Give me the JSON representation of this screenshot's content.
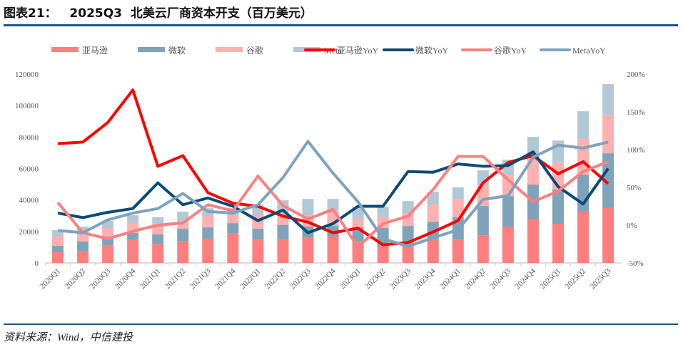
{
  "header": {
    "title": "图表21：   2025Q3  北美云厂商资本开支（百万美元）"
  },
  "footer": {
    "source": "资料来源：Wind，中信建投"
  },
  "chart_data": {
    "type": "bar+line",
    "title": "2025Q3 北美云厂商资本开支（百万美元）",
    "categories": [
      "2020Q1",
      "2020Q2",
      "2020Q3",
      "2020Q4",
      "2021Q1",
      "2021Q2",
      "2021Q3",
      "2021Q4",
      "2022Q1",
      "2022Q2",
      "2022Q3",
      "2022Q4",
      "2023Q1",
      "2023Q2",
      "2023Q3",
      "2023Q4",
      "2024Q1",
      "2024Q2",
      "2024Q3",
      "2024Q4",
      "2025Q1",
      "2025Q2",
      "2025Q3"
    ],
    "left_axis": {
      "ylim": [
        0,
        120000
      ],
      "ticks": [
        "0",
        "20000",
        "40000",
        "60000",
        "80000",
        "100000",
        "120000"
      ]
    },
    "right_axis": {
      "ylim": [
        -50,
        200
      ],
      "ticks": [
        "-50%",
        "0%",
        "50%",
        "100%",
        "150%",
        "200%"
      ]
    },
    "legend_position": "top",
    "bar_series": [
      {
        "name": "亚马逊",
        "color": "#ff7f7f",
        "values": [
          6800,
          7200,
          11300,
          14900,
          12200,
          14000,
          15400,
          19000,
          15000,
          15400,
          16300,
          17200,
          14000,
          10900,
          11000,
          14600,
          14900,
          17600,
          23100,
          27600,
          24900,
          32600,
          35100
        ]
      },
      {
        "name": "微软",
        "color": "#7fa3bb",
        "values": [
          4100,
          6400,
          5400,
          4100,
          5900,
          7700,
          7200,
          6300,
          6700,
          8600,
          6800,
          6300,
          8600,
          11300,
          12500,
          11600,
          14100,
          18600,
          19400,
          22200,
          21700,
          23500,
          34600
        ]
      },
      {
        "name": "谷歌",
        "color": "#ffb0b0",
        "values": [
          5800,
          4500,
          5500,
          6800,
          7200,
          4100,
          7300,
          4600,
          9100,
          6800,
          7200,
          9100,
          5500,
          6800,
          8100,
          10900,
          11700,
          13100,
          13200,
          15400,
          17200,
          22600,
          24000
        ]
      },
      {
        "name": "Meta",
        "color": "#b3c8d6",
        "values": [
          4100,
          5000,
          4500,
          4500,
          3700,
          6800,
          4900,
          4900,
          6300,
          9000,
          10400,
          8100,
          7600,
          6700,
          7700,
          8100,
          7300,
          9500,
          9900,
          14900,
          14000,
          17700,
          19900
        ]
      }
    ],
    "line_series": [
      {
        "name": "亚马逊YoY",
        "color": "#ff0000",
        "values": [
          108,
          110,
          136,
          179,
          78,
          92,
          43,
          29,
          25,
          12,
          4,
          -10,
          -4,
          -26,
          -23,
          -9,
          6,
          56,
          83,
          92,
          68,
          84,
          55
        ]
      },
      {
        "name": "微软YoY",
        "color": "#0b4a75",
        "values": [
          16,
          10,
          17,
          22,
          56,
          27,
          36,
          25,
          6,
          20,
          -10,
          2,
          25,
          25,
          71,
          70,
          81,
          78,
          79,
          97,
          51,
          28,
          75
        ]
      },
      {
        "name": "谷歌YoY",
        "color": "#ff8080",
        "values": [
          30,
          -10,
          -18,
          -8,
          0,
          3,
          27,
          19,
          65,
          26,
          8,
          21,
          -29,
          2,
          12,
          47,
          91,
          91,
          60,
          31,
          45,
          71,
          84
        ]
      },
      {
        "name": "MetaYoY",
        "color": "#7fa3bd",
        "values": [
          -7,
          -10,
          7,
          16,
          22,
          42,
          18,
          16,
          27,
          63,
          111,
          69,
          31,
          -18,
          -28,
          -17,
          -6,
          34,
          39,
          90,
          106,
          102,
          110
        ]
      }
    ]
  }
}
